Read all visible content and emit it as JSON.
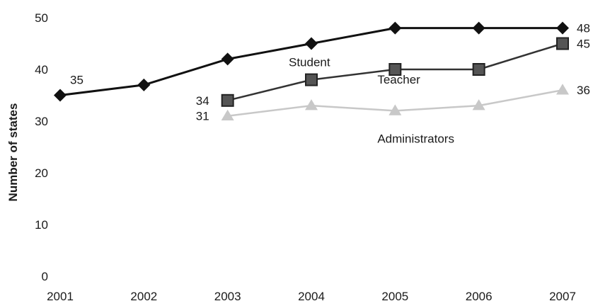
{
  "chart_data": {
    "type": "line",
    "title": "",
    "xlabel": "",
    "ylabel": "Number of states",
    "x": [
      "2001",
      "2002",
      "2003",
      "2004",
      "2005",
      "2006",
      "2007"
    ],
    "ylim": [
      0,
      50
    ],
    "yticks": [
      "0",
      "10",
      "20",
      "30",
      "40",
      "50"
    ],
    "grid": false,
    "legend": "inline labels",
    "series": [
      {
        "name": "Student",
        "color": "#111111",
        "marker": "diamond",
        "values": [
          35,
          37,
          42,
          45,
          48,
          48,
          48
        ],
        "point_labels": [
          "35",
          "",
          "",
          "",
          "",
          "",
          "48"
        ]
      },
      {
        "name": "Teacher",
        "color": "#333333",
        "marker": "square",
        "values": [
          null,
          null,
          34,
          38,
          40,
          40,
          45
        ],
        "point_labels": [
          "",
          "",
          "34",
          "",
          "",
          "",
          "45"
        ]
      },
      {
        "name": "Administrators",
        "color": "#c8c8c8",
        "marker": "triangle",
        "values": [
          null,
          null,
          31,
          33,
          32,
          33,
          36
        ],
        "point_labels": [
          "",
          "",
          "31",
          "",
          "",
          "",
          "36"
        ]
      }
    ]
  }
}
